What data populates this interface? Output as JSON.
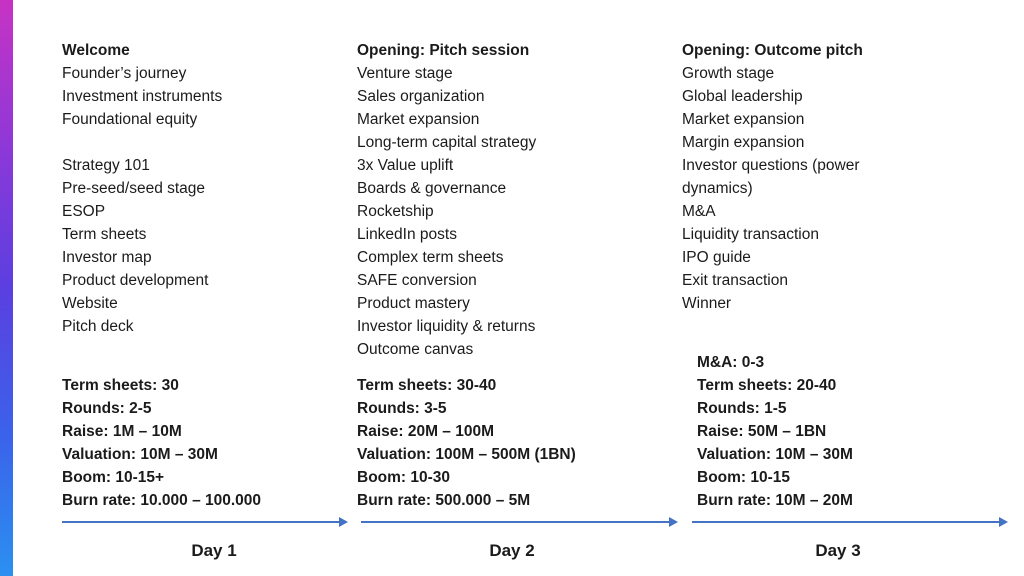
{
  "columns": [
    {
      "heading": "Welcome",
      "topics": [
        "Founder’s journey",
        "Investment instruments",
        "Foundational equity",
        "",
        "Strategy 101",
        "Pre-seed/seed stage",
        "ESOP",
        "Term sheets",
        "Investor map",
        "Product development",
        "Website",
        "Pitch deck"
      ],
      "stats": [
        "Term sheets: 30",
        "Rounds: 2-5",
        "Raise: 1M – 10M",
        "Valuation: 10M – 30M",
        "Boom: 10-15+",
        "Burn rate: 10.000 – 100.000"
      ],
      "day_label": "Day 1"
    },
    {
      "heading": "Opening: Pitch session",
      "topics": [
        "Venture stage",
        "Sales organization",
        "Market expansion",
        "Long-term capital strategy",
        "3x Value uplift",
        "Boards & governance",
        "Rocketship",
        "LinkedIn posts",
        "Complex term sheets",
        "SAFE conversion",
        "Product mastery",
        "Investor liquidity & returns",
        "Outcome canvas"
      ],
      "stats": [
        "Term sheets: 30-40",
        "Rounds: 3-5",
        "Raise: 20M – 100M",
        "Valuation: 100M – 500M (1BN)",
        "Boom: 10-30",
        "Burn rate: 500.000 – 5M"
      ],
      "day_label": "Day 2"
    },
    {
      "heading": "Opening: Outcome pitch",
      "topics": [
        "Growth stage",
        "Global leadership",
        "Market expansion",
        "Margin expansion",
        "Investor questions (power dynamics)",
        "M&A",
        "Liquidity transaction",
        "IPO guide",
        "Exit transaction",
        "Winner"
      ],
      "stats": [
        "M&A: 0-3",
        "Term sheets: 20-40",
        "Rounds: 1-5",
        "Raise: 50M – 1BN",
        "Valuation: 10M – 30M",
        "Boom: 10-15",
        "Burn rate: 10M – 20M"
      ],
      "day_label": "Day 3"
    }
  ],
  "colors": {
    "background": "#FFFFFF",
    "text": "#1B1B1B",
    "arrow": "#4472C4",
    "gradient_top": "#C733C4",
    "gradient_middle": "#5B3FE0",
    "gradient_bottom": "#2B90F0"
  }
}
